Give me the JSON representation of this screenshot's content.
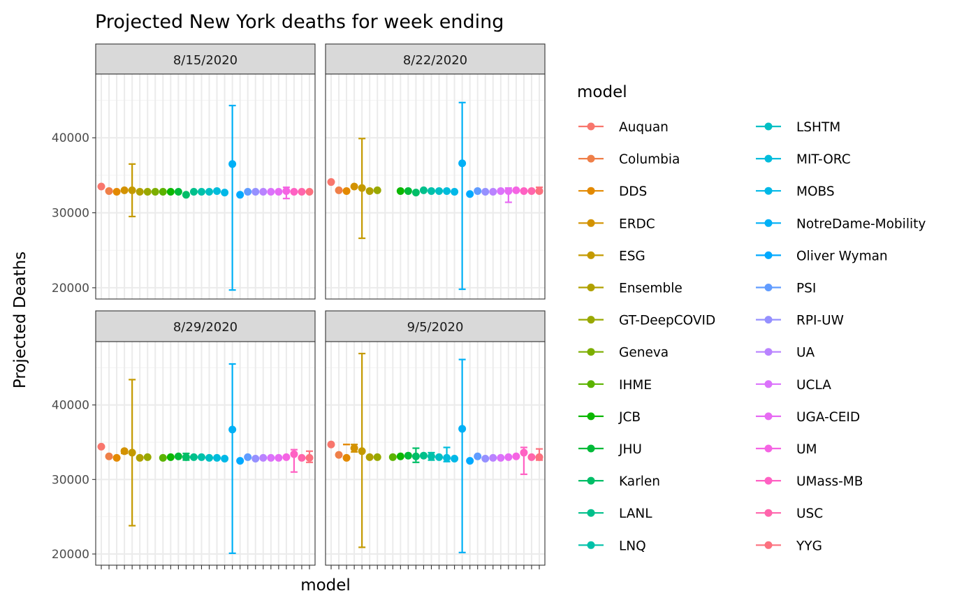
{
  "chart_data": {
    "type": "scatter",
    "title": "Projected New York deaths for week ending",
    "xlabel": "model",
    "ylabel": "Projected Deaths",
    "ylim": [
      18500,
      48500
    ],
    "yticks": [
      20000,
      30000,
      40000
    ],
    "grid": true,
    "legend_title": "model",
    "legend_position": "right",
    "models": [
      "Auquan",
      "Columbia",
      "DDS",
      "ERDC",
      "ESG",
      "Ensemble",
      "GT-DeepCOVID",
      "Geneva",
      "IHME",
      "JCB",
      "JHU",
      "Karlen",
      "LANL",
      "LNQ",
      "LSHTM",
      "MIT-ORC",
      "MOBS",
      "NotreDame-Mobility",
      "Oliver Wyman",
      "PSI",
      "RPI-UW",
      "UA",
      "UCLA",
      "UGA-CEID",
      "UM",
      "UMass-MB",
      "USC",
      "YYG"
    ],
    "colors": [
      "#F8766D",
      "#EF7F48",
      "#E38900",
      "#D39200",
      "#C49A00",
      "#B0A000",
      "#99A800",
      "#7CAE00",
      "#5BB300",
      "#0CB702",
      "#00BA38",
      "#00BE67",
      "#00C08B",
      "#00C1A9",
      "#00BFC4",
      "#00BCDC",
      "#00B8E7",
      "#00B0F6",
      "#00A9FF",
      "#619CFF",
      "#9590FF",
      "#B983FF",
      "#DB72FB",
      "#E76BF3",
      "#F564E3",
      "#FF61C3",
      "#FF65AC",
      "#FC717F"
    ],
    "panels": [
      {
        "name": "8/15/2020",
        "values": [
          33500,
          32900,
          32800,
          33000,
          33000,
          32800,
          32800,
          32800,
          32800,
          32800,
          32800,
          32400,
          32800,
          32800,
          32800,
          32900,
          32700,
          36500,
          32400,
          32800,
          32800,
          32800,
          32800,
          32800,
          32900,
          32800,
          32800,
          32800
        ],
        "errors": [
          {
            "model": "ESG",
            "low": 29500,
            "high": 36500
          },
          {
            "model": "NotreDame-Mobility",
            "low": 19700,
            "high": 44300
          },
          {
            "model": "UM",
            "low": 31900,
            "high": 33400
          }
        ]
      },
      {
        "name": "8/22/2020",
        "values": [
          34100,
          33000,
          32900,
          33500,
          33300,
          32900,
          33000,
          null,
          null,
          32900,
          32900,
          32700,
          33000,
          32900,
          32900,
          32900,
          32800,
          36600,
          32500,
          32900,
          32800,
          32800,
          32900,
          32900,
          33000,
          32900,
          32900,
          32900
        ],
        "errors": [
          {
            "model": "ESG",
            "low": 26600,
            "high": 39900
          },
          {
            "model": "NotreDame-Mobility",
            "low": 19800,
            "high": 44700
          },
          {
            "model": "UGA-CEID",
            "low": 31400,
            "high": 33300
          },
          {
            "model": "YYG",
            "low": 32700,
            "high": 33400
          }
        ]
      },
      {
        "name": "8/29/2020",
        "values": [
          34400,
          33100,
          32900,
          33800,
          33600,
          32900,
          33000,
          null,
          32900,
          33000,
          33100,
          33000,
          33000,
          33000,
          32900,
          32900,
          32800,
          36700,
          32500,
          33000,
          32800,
          32900,
          32900,
          32900,
          33000,
          33400,
          32900,
          32900
        ],
        "errors": [
          {
            "model": "ERDC",
            "low": 33500,
            "high": 34000
          },
          {
            "model": "ESG",
            "low": 23800,
            "high": 43400
          },
          {
            "model": "Karlen",
            "low": 32600,
            "high": 33500
          },
          {
            "model": "NotreDame-Mobility",
            "low": 20100,
            "high": 45500
          },
          {
            "model": "UMass-MB",
            "low": 31000,
            "high": 34000
          },
          {
            "model": "YYG",
            "low": 32300,
            "high": 33800
          }
        ]
      },
      {
        "name": "9/5/2020",
        "values": [
          34700,
          33300,
          32900,
          34200,
          33800,
          33000,
          33000,
          null,
          33000,
          33100,
          33200,
          33100,
          33200,
          33100,
          33000,
          32900,
          32800,
          36800,
          32500,
          33100,
          32800,
          32900,
          32900,
          33000,
          33100,
          33600,
          33000,
          33000
        ],
        "errors": [
          {
            "model": "DDS",
            "low": 34700,
            "high": 34700
          },
          {
            "model": "ERDC",
            "low": 33700,
            "high": 34700
          },
          {
            "model": "ESG",
            "low": 20900,
            "high": 46900
          },
          {
            "model": "Karlen",
            "low": 32300,
            "high": 34200
          },
          {
            "model": "LNQ",
            "low": 32600,
            "high": 33600
          },
          {
            "model": "MIT-ORC",
            "low": 32400,
            "high": 34300
          },
          {
            "model": "NotreDame-Mobility",
            "low": 20200,
            "high": 46100
          },
          {
            "model": "UMass-MB",
            "low": 30700,
            "high": 34300
          },
          {
            "model": "YYG",
            "low": 32600,
            "high": 34100
          }
        ]
      }
    ]
  }
}
